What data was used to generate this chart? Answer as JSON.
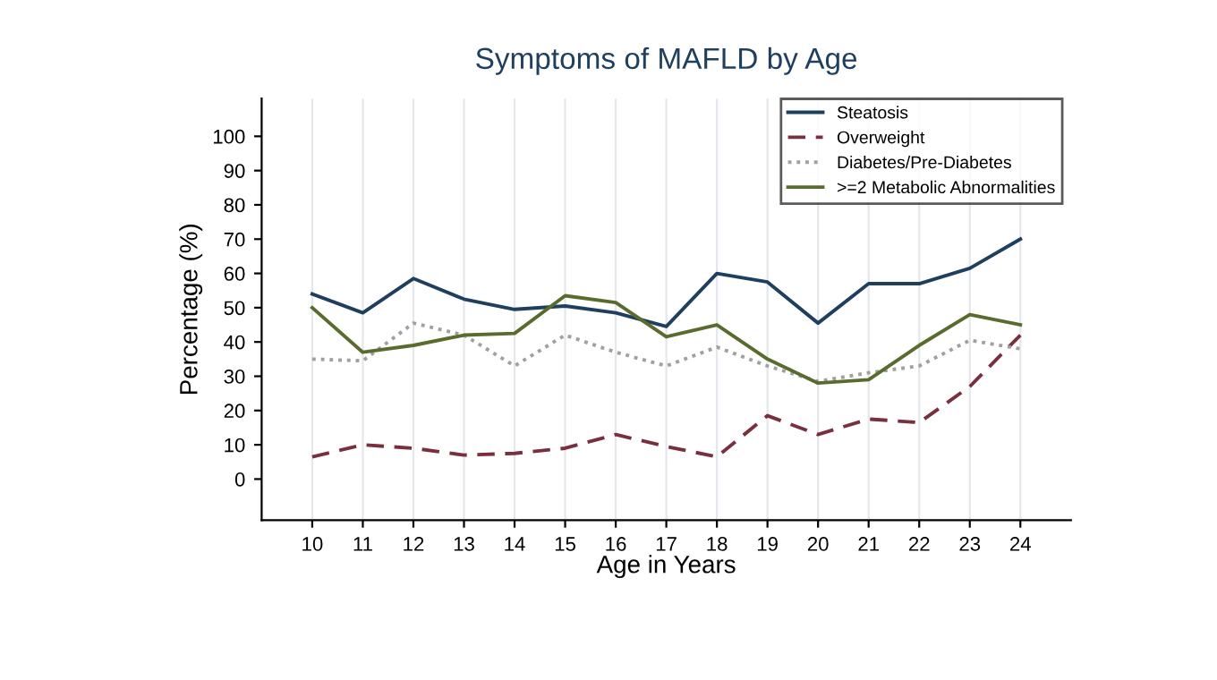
{
  "chart_data": {
    "type": "line",
    "title": "Symptoms of MAFLD by Age",
    "xlabel": "Age in Years",
    "ylabel": "Percentage (%)",
    "x": [
      10,
      11,
      12,
      13,
      14,
      15,
      16,
      17,
      18,
      19,
      20,
      21,
      22,
      23,
      24
    ],
    "series": [
      {
        "name": "Steatosis",
        "color": "#1f3f5f",
        "line_style": "solid",
        "values": [
          54,
          48.5,
          58.5,
          52.5,
          49.5,
          50.5,
          48.5,
          44.5,
          60,
          57.5,
          45.5,
          57,
          57,
          61.5,
          70
        ]
      },
      {
        "name": "Overweight",
        "color": "#7a2f3f",
        "line_style": "dashed",
        "values": [
          6.5,
          10,
          9,
          7,
          7.5,
          9,
          13,
          9.5,
          6.5,
          18.5,
          13,
          17.5,
          16.5,
          27,
          42
        ]
      },
      {
        "name": "Diabetes/Pre-Diabetes",
        "color": "#a0a0a0",
        "line_style": "dotted",
        "values": [
          35,
          34.5,
          45.5,
          42,
          33,
          42,
          37,
          33,
          38.5,
          33,
          28.5,
          31,
          33,
          40.5,
          38
        ]
      },
      {
        "name": ">=2 Metabolic Abnormalities",
        "color": "#5a6b2e",
        "line_style": "solid",
        "values": [
          50,
          37,
          39,
          42,
          42.5,
          53.5,
          51.5,
          41.5,
          45,
          35,
          28,
          29,
          39,
          48,
          45
        ]
      }
    ],
    "xlim": [
      9,
      25
    ],
    "xticks": [
      10,
      11,
      12,
      13,
      14,
      15,
      16,
      17,
      18,
      19,
      20,
      21,
      22,
      23,
      24
    ],
    "ylim": [
      -12,
      111
    ],
    "yticks": [
      0,
      10,
      20,
      30,
      40,
      50,
      60,
      70,
      80,
      90,
      100
    ],
    "grid": "x",
    "legend": "top right",
    "marker": "none"
  }
}
